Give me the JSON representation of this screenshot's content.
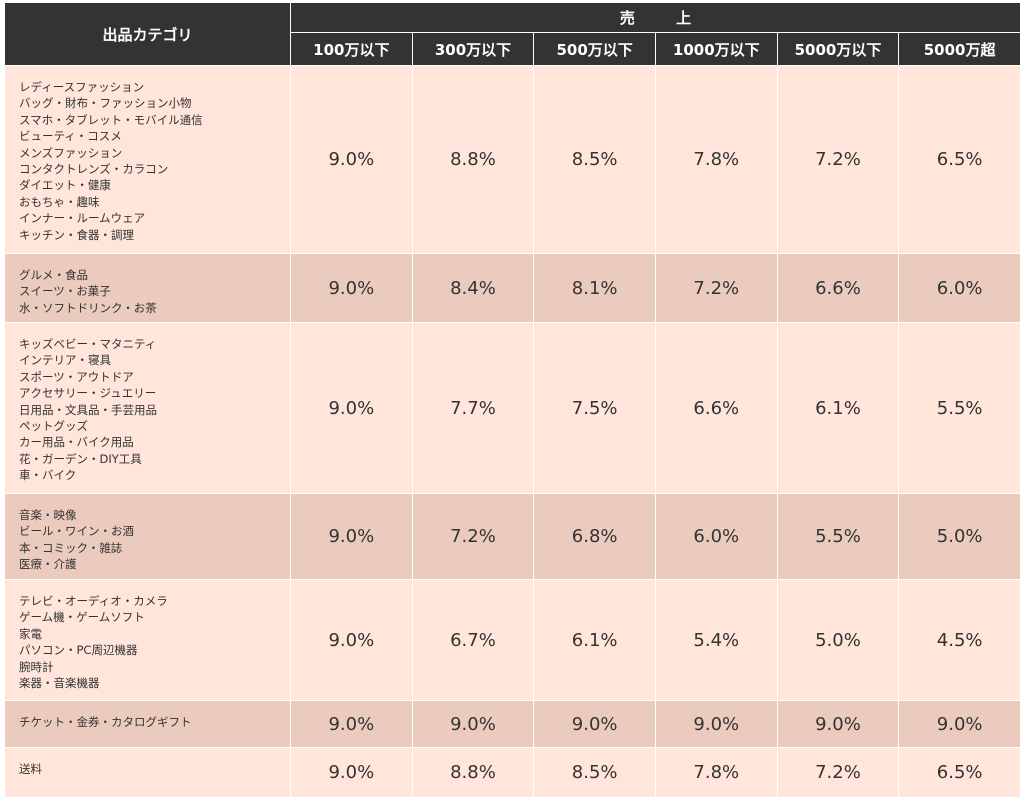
{
  "header": {
    "category_label": "出品カテゴリ",
    "sales_label": "売 上",
    "tiers": [
      "100万以下",
      "300万以下",
      "500万以下",
      "1000万以下",
      "5000万以下",
      "5000万超"
    ]
  },
  "rows": [
    {
      "categories": [
        "レディースファッション",
        "バッグ・財布・ファッション小物",
        "スマホ・タブレット・モバイル通信",
        "ビューティ・コスメ",
        "メンズファッション",
        "コンタクトレンズ・カラコン",
        "ダイエット・健康",
        "おもちゃ・趣味",
        "インナー・ルームウェア",
        "キッチン・食器・調理"
      ],
      "rates": [
        "9.0%",
        "8.8%",
        "8.5%",
        "7.8%",
        "7.2%",
        "6.5%"
      ]
    },
    {
      "categories": [
        "グルメ・食品",
        "スイーツ・お菓子",
        "水・ソフトドリンク・お茶"
      ],
      "rates": [
        "9.0%",
        "8.4%",
        "8.1%",
        "7.2%",
        "6.6%",
        "6.0%"
      ]
    },
    {
      "categories": [
        "キッズベビー・マタニティ",
        "インテリア・寝具",
        "スポーツ・アウトドア",
        "アクセサリー・ジュエリー",
        "日用品・文具品・手芸用品",
        "ペットグッズ",
        "カー用品・バイク用品",
        "花・ガーデン・DIY工具",
        "車・バイク"
      ],
      "rates": [
        "9.0%",
        "7.7%",
        "7.5%",
        "6.6%",
        "6.1%",
        "5.5%"
      ]
    },
    {
      "categories": [
        "音楽・映像",
        "ビール・ワイン・お酒",
        "本・コミック・雑誌",
        "医療・介護"
      ],
      "rates": [
        "9.0%",
        "7.2%",
        "6.8%",
        "6.0%",
        "5.5%",
        "5.0%"
      ]
    },
    {
      "categories": [
        "テレビ・オーディオ・カメラ",
        "ゲーム機・ゲームソフト",
        "家電",
        "パソコン・PC周辺機器",
        "腕時計",
        "楽器・音楽機器"
      ],
      "rates": [
        "9.0%",
        "6.7%",
        "6.1%",
        "5.4%",
        "5.0%",
        "4.5%"
      ]
    },
    {
      "categories": [
        "チケット・金券・カタログギフト"
      ],
      "rates": [
        "9.0%",
        "9.0%",
        "9.0%",
        "9.0%",
        "9.0%",
        "9.0%"
      ]
    },
    {
      "categories": [
        "送料"
      ],
      "rates": [
        "9.0%",
        "8.8%",
        "8.5%",
        "7.8%",
        "7.2%",
        "6.5%"
      ]
    }
  ],
  "theme": {
    "header_bg": "#333333",
    "row_light": "#ffe5da",
    "row_dark": "#ebcbbd"
  }
}
